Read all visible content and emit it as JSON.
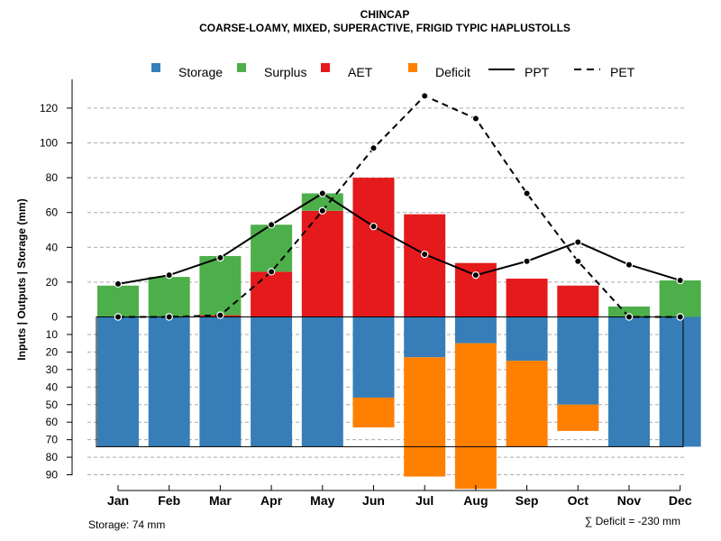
{
  "chart_data": {
    "type": "bar",
    "title": "CHINCAP",
    "subtitle": "COARSE-LOAMY, MIXED, SUPERACTIVE, FRIGID TYPIC HAPLUSTOLLS",
    "ylabel": "Inputs | Outputs | Storage    (mm)",
    "categories": [
      "Jan",
      "Feb",
      "Mar",
      "Apr",
      "May",
      "Jun",
      "Jul",
      "Aug",
      "Sep",
      "Oct",
      "Nov",
      "Dec"
    ],
    "yticks_upper": [
      0,
      20,
      40,
      60,
      80,
      100,
      120
    ],
    "yticks_lower": [
      10,
      20,
      30,
      40,
      50,
      60,
      70,
      80,
      90
    ],
    "ylim_upper": [
      0,
      130
    ],
    "ylim_lower": [
      0,
      90
    ],
    "storage_capacity": 74,
    "legend": [
      {
        "label": "Storage",
        "kind": "box",
        "color": "#377EB8"
      },
      {
        "label": "Surplus",
        "kind": "box",
        "color": "#4DAF4A"
      },
      {
        "label": "AET",
        "kind": "box",
        "color": "#E41A1C"
      },
      {
        "label": "Deficit",
        "kind": "box",
        "color": "#FF7F00"
      },
      {
        "label": "PPT",
        "kind": "solid",
        "color": "#000000"
      },
      {
        "label": "PET",
        "kind": "dashed",
        "color": "#000000"
      }
    ],
    "colors": {
      "storage": "#377EB8",
      "surplus": "#4DAF4A",
      "aet": "#E41A1C",
      "deficit": "#FF7F00",
      "line": "#000000",
      "grid": "#AAAAAA"
    },
    "series": [
      {
        "name": "AET",
        "values": [
          0,
          0,
          1,
          26,
          61,
          80,
          59,
          31,
          22,
          18,
          0,
          0
        ]
      },
      {
        "name": "Surplus",
        "values": [
          18,
          23,
          34,
          27,
          10,
          0,
          0,
          0,
          0,
          0,
          6,
          21
        ]
      },
      {
        "name": "Storage",
        "values": [
          74,
          74,
          74,
          74,
          74,
          46,
          23,
          15,
          25,
          50,
          74,
          74
        ]
      },
      {
        "name": "Deficit",
        "values": [
          0,
          0,
          0,
          0,
          0,
          17,
          68,
          83,
          49,
          15,
          0,
          0
        ]
      },
      {
        "name": "PPT",
        "values": [
          19,
          24,
          34,
          53,
          71,
          52,
          36,
          24,
          32,
          43,
          30,
          21
        ]
      },
      {
        "name": "PET",
        "values": [
          0,
          0,
          1,
          26,
          61,
          97,
          127,
          114,
          71,
          32,
          0,
          0
        ]
      }
    ],
    "footer_storage": "Storage: 74 mm",
    "footer_deficit": "∑ Deficit = -230 mm"
  }
}
